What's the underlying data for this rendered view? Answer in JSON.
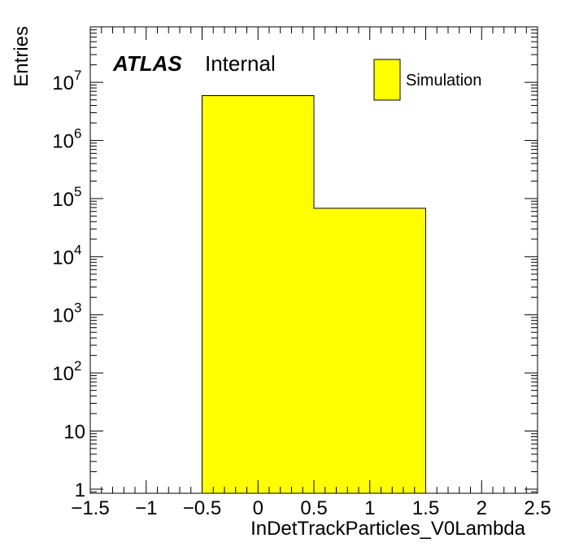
{
  "chart_data": {
    "type": "bar",
    "histogram": true,
    "series": [
      {
        "name": "Simulation",
        "bins": [
          {
            "x_low": -0.5,
            "x_high": 0.5,
            "value": 5900000
          },
          {
            "x_low": 0.5,
            "x_high": 1.5,
            "value": 68000
          }
        ]
      }
    ],
    "x_axis": {
      "label": "InDetTrackParticles_V0Lambda",
      "range": [
        -1.5,
        2.5
      ],
      "ticks": [
        {
          "value": -1.5,
          "label": "−1.5"
        },
        {
          "value": -1,
          "label": "−1"
        },
        {
          "value": -0.5,
          "label": "−0.5"
        },
        {
          "value": 0,
          "label": "0"
        },
        {
          "value": 0.5,
          "label": "0.5"
        },
        {
          "value": 1,
          "label": "1"
        },
        {
          "value": 1.5,
          "label": "1.5"
        },
        {
          "value": 2,
          "label": "2"
        },
        {
          "value": 2.5,
          "label": "2.5"
        }
      ]
    },
    "y_axis": {
      "label": "Entries",
      "scale": "log",
      "range": [
        0.85,
        90000000
      ],
      "ticks": [
        {
          "value": 1,
          "base": "1",
          "exp": ""
        },
        {
          "value": 10,
          "base": "10",
          "exp": ""
        },
        {
          "value": 100,
          "base": "10",
          "exp": "2"
        },
        {
          "value": 1000,
          "base": "10",
          "exp": "3"
        },
        {
          "value": 10000,
          "base": "10",
          "exp": "4"
        },
        {
          "value": 100000,
          "base": "10",
          "exp": "5"
        },
        {
          "value": 1000000,
          "base": "10",
          "exp": "6"
        },
        {
          "value": 10000000,
          "base": "10",
          "exp": "7"
        }
      ]
    },
    "labels": {
      "experiment": "ATLAS",
      "status": "Internal"
    },
    "legend": {
      "position": "top-right",
      "entries": [
        "Simulation"
      ]
    },
    "grid": false,
    "colors": {
      "fill": "#ffff00",
      "line": "#000000",
      "background": "#ffffff"
    }
  }
}
